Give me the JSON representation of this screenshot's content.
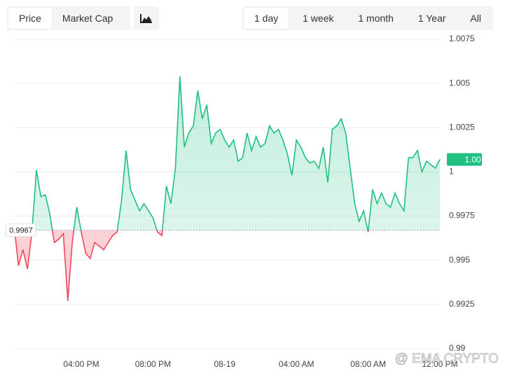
{
  "tabs": {
    "metric": [
      "Price",
      "Market Cap"
    ],
    "range": [
      "1 day",
      "1 week",
      "1 month",
      "1 Year",
      "All"
    ]
  },
  "watermark": "@ EMA CRYPTO",
  "chart_data": {
    "type": "line",
    "values": [
      0.997,
      0.9947,
      0.9956,
      0.9945,
      0.9966,
      1.0001,
      0.9986,
      0.9987,
      0.9976,
      0.996,
      0.9962,
      0.9965,
      0.9927,
      0.996,
      0.998,
      0.9966,
      0.9954,
      0.9951,
      0.996,
      0.9958,
      0.9956,
      0.996,
      0.9964,
      0.9966,
      0.9984,
      1.0012,
      0.999,
      0.9984,
      0.9978,
      0.9982,
      0.9978,
      0.9974,
      0.9966,
      0.9964,
      0.9992,
      0.9982,
      1.0002,
      1.0054,
      1.0014,
      1.0022,
      1.0026,
      1.0046,
      1.003,
      1.0038,
      1.0016,
      1.0022,
      1.0024,
      1.0018,
      1.0014,
      1.0018,
      1.0006,
      1.0008,
      1.0022,
      1.0012,
      1.002,
      1.0014,
      1.0016,
      1.0026,
      1.0022,
      1.0024,
      1.0018,
      1.001,
      0.9998,
      1.0018,
      1.0014,
      1.0008,
      1.0005,
      1.0006,
      1.0002,
      1.0014,
      0.9994,
      1.0024,
      1.0026,
      1.003,
      1.0022,
      1.0002,
      0.9982,
      0.9972,
      0.9978,
      0.9966,
      0.999,
      0.9982,
      0.9988,
      0.9982,
      0.998,
      0.9988,
      0.9982,
      0.9978,
      1.0008,
      1.0008,
      1.0012,
      1.0,
      1.0006,
      1.0004,
      1.0002,
      1.0007
    ],
    "last_label": "1.00",
    "baseline": 0.9967,
    "up_color": "#20c083",
    "down_color": "#f0475c",
    "xlim": [
      0,
      95
    ],
    "xticks": [
      {
        "value": 15,
        "label": "04:00 PM"
      },
      {
        "value": 31,
        "label": "08:00 PM"
      },
      {
        "value": 47,
        "label": "08-19"
      },
      {
        "value": 63,
        "label": "04:00 AM"
      },
      {
        "value": 79,
        "label": "08:00 AM"
      },
      {
        "value": 95,
        "label": "12:00 PM"
      }
    ],
    "ylim": [
      0.99,
      1.0075
    ],
    "yticks": [
      0.99,
      0.9925,
      0.995,
      0.9975,
      1,
      1.0025,
      1.005,
      1.0075
    ],
    "grid": true
  }
}
